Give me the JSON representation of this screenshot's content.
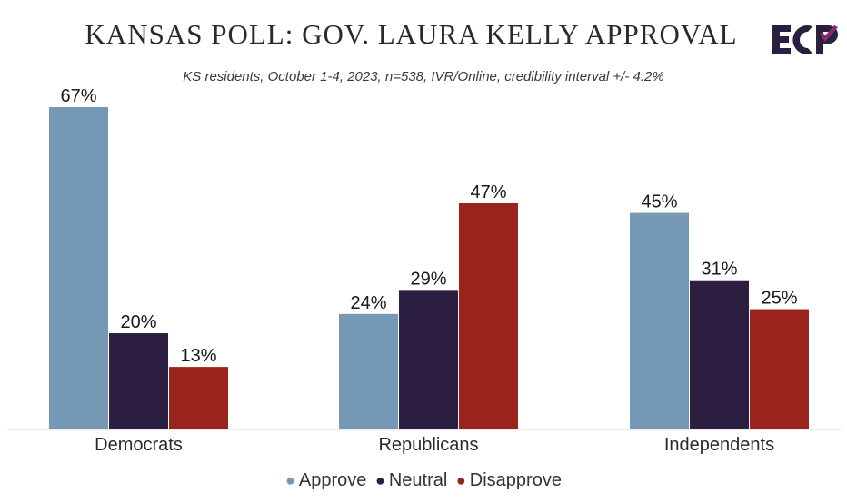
{
  "chart_data": {
    "type": "bar",
    "title": "KANSAS POLL: GOV. LAURA KELLY APPROVAL",
    "subtitle": "KS residents, October 1-4, 2023, n=538, IVR/Online, credibility interval +/- 4.2%",
    "categories": [
      "Democrats",
      "Republicans",
      "Independents"
    ],
    "series": [
      {
        "name": "Approve",
        "values": [
          67,
          24,
          45
        ],
        "color": "#7599b5"
      },
      {
        "name": "Neutral",
        "values": [
          20,
          29,
          31
        ],
        "color": "#2c1e41"
      },
      {
        "name": "Disapprove",
        "values": [
          13,
          47,
          25
        ],
        "color": "#9a231b"
      }
    ],
    "data_labels": [
      [
        "67%",
        "24%",
        "45%"
      ],
      [
        "20%",
        "29%",
        "31%"
      ],
      [
        "13%",
        "47%",
        "25%"
      ]
    ],
    "value_suffix": "%",
    "ylim": [
      0,
      67
    ],
    "xlabel": "",
    "ylabel": "",
    "grid": false,
    "legend_position": "bottom"
  },
  "legend": {
    "dot": "●",
    "items": [
      {
        "label": "Approve",
        "color": "#7599b5"
      },
      {
        "label": "Neutral",
        "color": "#2c1e41"
      },
      {
        "label": "Disapprove",
        "color": "#9a231b"
      }
    ]
  },
  "logo": {
    "text": "ECP",
    "icon": "ecp-logo",
    "colors": {
      "dark": "#2c1e41",
      "accent": "#8a2a6a"
    }
  }
}
